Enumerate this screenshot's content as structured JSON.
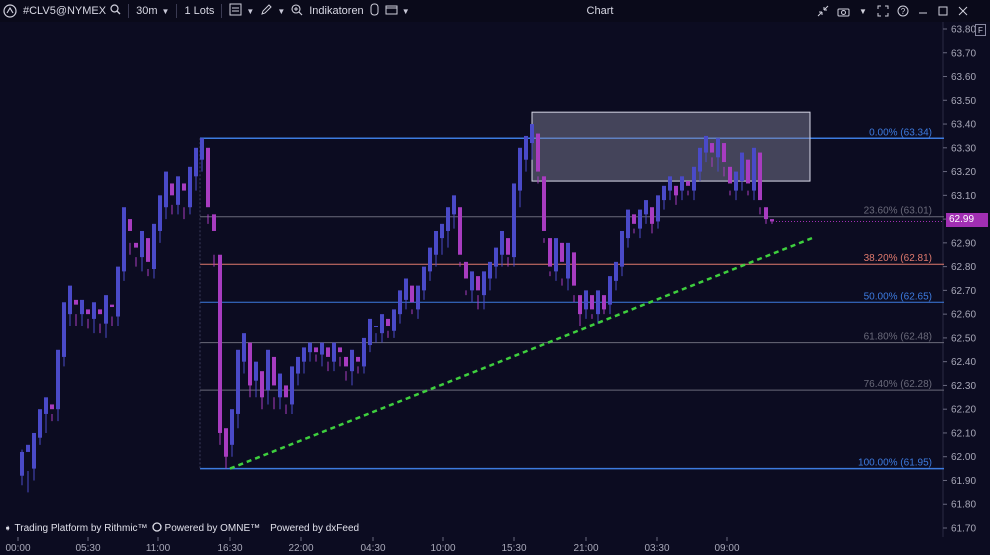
{
  "toolbar": {
    "symbol": "#CLV5@NYMEX",
    "interval": "30m",
    "lots": "1 Lots",
    "indicators_label": "Indikatoren",
    "chart_title": "Chart"
  },
  "icons": {
    "logo": "logo-icon",
    "search": "search-icon",
    "pencil": "pencil-icon",
    "chart_type": "chart-type-icon",
    "crosshair_zoom": "zoom-icon",
    "indicators": "indicators-icon",
    "template": "template-icon",
    "collapse": "collapse-icon",
    "camera": "camera-icon",
    "fullscreen": "fullscreen-icon",
    "help": "help-icon",
    "minimize": "minimize-icon",
    "maximize": "maximize-icon",
    "close": "close-icon"
  },
  "price_axis": {
    "labels": [
      "63.80",
      "63.70",
      "63.60",
      "63.50",
      "63.40",
      "63.30",
      "63.20",
      "63.10",
      "63.00",
      "62.90",
      "62.80",
      "62.70",
      "62.60",
      "62.50",
      "62.40",
      "62.30",
      "62.20",
      "62.10",
      "62.00",
      "61.90",
      "61.80",
      "61.70"
    ],
    "current_price": "62.99",
    "current_price_color": "#a12fb3",
    "axis_badge": "F"
  },
  "time_axis": {
    "labels": [
      "00:00",
      "05:30",
      "11:00",
      "16:30",
      "22:00",
      "04:30",
      "10:00",
      "15:30",
      "21:00",
      "03:30",
      "09:00"
    ]
  },
  "fibonacci": {
    "levels": [
      {
        "label": "0.00% (63.34)",
        "price": 63.34,
        "color": "#3d7be0"
      },
      {
        "label": "23.60% (63.01)",
        "price": 63.01,
        "color": "#6a6a7a"
      },
      {
        "label": "38.20% (62.81)",
        "price": 62.81,
        "color": "#e07a6e"
      },
      {
        "label": "50.00% (62.65)",
        "price": 62.65,
        "color": "#3d7be0"
      },
      {
        "label": "61.80% (62.48)",
        "price": 62.48,
        "color": "#6a6a7a"
      },
      {
        "label": "76.40% (62.28)",
        "price": 62.28,
        "color": "#6a6a7a"
      },
      {
        "label": "100.00% (61.95)",
        "price": 61.95,
        "color": "#3d7be0"
      }
    ]
  },
  "attribution": {
    "item1": "Trading Platform by Rithmic™",
    "item2": "Powered by OMNE™",
    "item3": "Powered by dxFeed"
  },
  "colors": {
    "background": "#0c0c21",
    "bull_candle": "#4a4ac8",
    "bear_candle": "#a83cc0",
    "trendline": "#3ecf3e",
    "zone_fill": "#8a8aa0"
  }
}
